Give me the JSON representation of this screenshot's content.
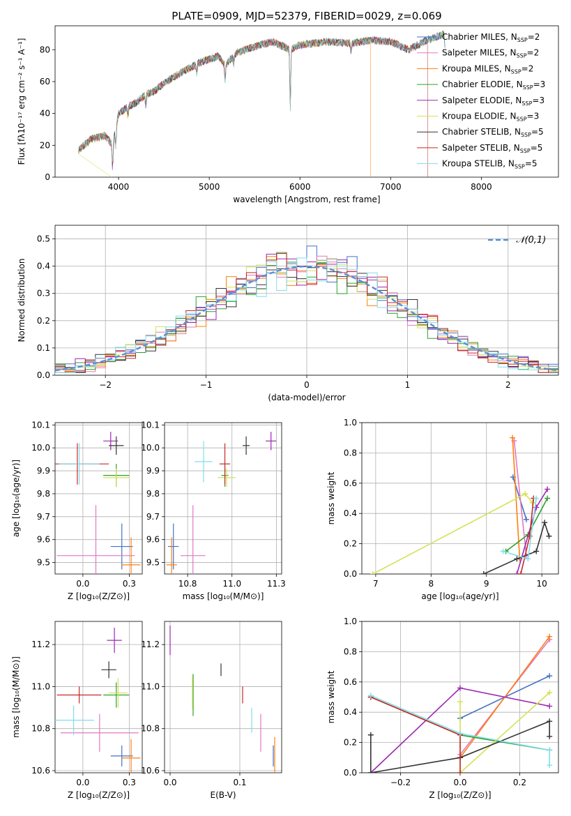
{
  "figure": {
    "title": "PLATE=0909, MJD=52379, FIBERID=0029, z=0.069"
  },
  "models": [
    {
      "name": "Chabrier MILES",
      "nssp": "2",
      "color": "#4472c4"
    },
    {
      "name": "Salpeter MILES",
      "nssp": "2",
      "color": "#e377c2"
    },
    {
      "name": "Kroupa MILES",
      "nssp": "2",
      "color": "#ff7f0e"
    },
    {
      "name": "Chabrier ELODIE",
      "nssp": "3",
      "color": "#2ca02c"
    },
    {
      "name": "Salpeter ELODIE",
      "nssp": "3",
      "color": "#9c27b0"
    },
    {
      "name": "Kroupa ELODIE",
      "nssp": "3",
      "color": "#d4e157"
    },
    {
      "name": "Chabrier STELIB",
      "nssp": "5",
      "color": "#333333"
    },
    {
      "name": "Salpeter STELIB",
      "nssp": "5",
      "color": "#c62828"
    },
    {
      "name": "Kroupa STELIB",
      "nssp": "5",
      "color": "#80deea"
    }
  ],
  "chart_data": [
    {
      "id": "spectrum",
      "type": "line",
      "xlabel": "wavelength [Angstrom, rest frame]",
      "ylabel": "Flux [fλ10⁻¹⁷ erg cm⁻² s⁻¹ A⁻¹]",
      "xlim": [
        3300,
        8850
      ],
      "ylim": [
        0,
        95
      ],
      "xticks": [
        4000,
        5000,
        6000,
        7000,
        8000
      ],
      "yticks": [
        0,
        20,
        40,
        60,
        80
      ],
      "x": [
        3560,
        3700,
        3850,
        3935,
        4000,
        4100,
        4200,
        4300,
        4400,
        4500,
        4700,
        4900,
        5100,
        5175,
        5300,
        5500,
        5700,
        5893,
        6000,
        6300,
        6563,
        6800,
        7000,
        7200,
        7400,
        7600
      ],
      "y": [
        17,
        24,
        26,
        20,
        40,
        44,
        47,
        52,
        54,
        59,
        66,
        72,
        76,
        70,
        78,
        82,
        85,
        80,
        83,
        85,
        84,
        86,
        85,
        80,
        86,
        90
      ],
      "legend_position": "upper right"
    },
    {
      "id": "residuals",
      "type": "histogram",
      "xlabel": "(data-model)/error",
      "ylabel": "Normed distribution",
      "xlim": [
        -2.5,
        2.5
      ],
      "ylim": [
        0,
        0.55
      ],
      "xticks": [
        -2,
        -1,
        0,
        1,
        2
      ],
      "yticks": [
        0.0,
        0.1,
        0.2,
        0.3,
        0.4,
        0.5
      ],
      "bin_width": 0.1,
      "reference_curve": {
        "label": "𝒩(0,1)",
        "mean": 0,
        "sigma": 1
      },
      "legend_position": "upper right"
    },
    {
      "id": "age-vs-z",
      "type": "scatter",
      "xlabel": "Z [log₁₀(Z/Z⊙)]",
      "ylabel": "age  [log₁₀(age/yr)]",
      "xlim": [
        -0.15,
        0.32
      ],
      "ylim": [
        9.45,
        10.11
      ],
      "xticks": [
        0.0,
        0.25
      ],
      "yticks": [
        9.5,
        9.6,
        9.7,
        9.8,
        9.9,
        10.0,
        10.1
      ],
      "points": [
        {
          "model": 0,
          "x": 0.21,
          "y": 9.57,
          "xerr": 0.06,
          "yerr": 0.1
        },
        {
          "model": 1,
          "x": 0.07,
          "y": 9.53,
          "xerr": 0.21,
          "yerr": 0.22
        },
        {
          "model": 2,
          "x": 0.26,
          "y": 9.49,
          "xerr": 0.05,
          "yerr": 0.12
        },
        {
          "model": 3,
          "x": 0.18,
          "y": 9.88,
          "xerr": 0.07,
          "yerr": 0.05
        },
        {
          "model": 4,
          "x": 0.15,
          "y": 10.03,
          "xerr": 0.04,
          "yerr": 0.04
        },
        {
          "model": 5,
          "x": 0.18,
          "y": 9.87,
          "xerr": 0.07,
          "yerr": 0.04
        },
        {
          "model": 6,
          "x": 0.18,
          "y": 10.01,
          "xerr": 0.04,
          "yerr": 0.04
        },
        {
          "model": 7,
          "x": -0.03,
          "y": 9.93,
          "xerr": 0.17,
          "yerr": 0.09
        },
        {
          "model": 8,
          "x": -0.02,
          "y": 9.93,
          "xerr": 0.11,
          "yerr": 0.09
        }
      ]
    },
    {
      "id": "age-vs-mass",
      "type": "scatter",
      "xlabel": "mass [log₁₀(M/M⊙)]",
      "ylabel": "",
      "xlim": [
        10.62,
        11.28
      ],
      "ylim": [
        9.45,
        10.11
      ],
      "xticks": [
        10.75,
        11.0,
        11.25
      ],
      "yticks": [
        9.5,
        9.6,
        9.7,
        9.8,
        9.9,
        10.0,
        10.1
      ],
      "points": [
        {
          "model": 0,
          "x": 10.67,
          "y": 9.57,
          "xerr": 0.03,
          "yerr": 0.1
        },
        {
          "model": 1,
          "x": 10.78,
          "y": 9.53,
          "xerr": 0.07,
          "yerr": 0.22
        },
        {
          "model": 2,
          "x": 10.66,
          "y": 9.49,
          "xerr": 0.03,
          "yerr": 0.12
        },
        {
          "model": 3,
          "x": 10.96,
          "y": 9.88,
          "xerr": 0.02,
          "yerr": 0.05
        },
        {
          "model": 4,
          "x": 11.22,
          "y": 10.03,
          "xerr": 0.03,
          "yerr": 0.04
        },
        {
          "model": 5,
          "x": 10.97,
          "y": 9.87,
          "xerr": 0.05,
          "yerr": 0.04
        },
        {
          "model": 6,
          "x": 11.08,
          "y": 10.01,
          "xerr": 0.02,
          "yerr": 0.04
        },
        {
          "model": 7,
          "x": 10.96,
          "y": 9.93,
          "xerr": 0.03,
          "yerr": 0.09
        },
        {
          "model": 8,
          "x": 10.84,
          "y": 9.94,
          "xerr": 0.05,
          "yerr": 0.09
        }
      ]
    },
    {
      "id": "weight-vs-age",
      "type": "line",
      "xlabel": "age  [log₁₀(age/yr)]",
      "ylabel": "mass weight",
      "xlim": [
        6.75,
        10.3
      ],
      "ylim": [
        0,
        1.0
      ],
      "xticks": [
        7,
        8,
        9,
        10
      ],
      "yticks": [
        0.0,
        0.2,
        0.4,
        0.6,
        0.8,
        1.0
      ],
      "series": [
        {
          "model": 0,
          "x": [
            9.48,
            9.72
          ],
          "y": [
            0.64,
            0.36
          ]
        },
        {
          "model": 1,
          "x": [
            9.5,
            9.72
          ],
          "y": [
            0.88,
            0.12
          ]
        },
        {
          "model": 2,
          "x": [
            9.47,
            9.6
          ],
          "y": [
            0.9,
            0.1
          ]
        },
        {
          "model": 3,
          "x": [
            9.35,
            9.75,
            10.1
          ],
          "y": [
            0.15,
            0.26,
            0.5
          ]
        },
        {
          "model": 4,
          "x": [
            9.55,
            9.9,
            10.1
          ],
          "y": [
            0.0,
            0.44,
            0.56
          ]
        },
        {
          "model": 5,
          "x": [
            6.95,
            9.7,
            9.83
          ],
          "y": [
            0.0,
            0.53,
            0.47
          ]
        },
        {
          "model": 6,
          "x": [
            8.95,
            9.55,
            9.9,
            10.05,
            10.13
          ],
          "y": [
            0.0,
            0.1,
            0.15,
            0.34,
            0.25
          ]
        },
        {
          "model": 7,
          "x": [
            9.62,
            9.78,
            9.85
          ],
          "y": [
            0.0,
            0.25,
            0.5
          ]
        },
        {
          "model": 8,
          "x": [
            9.3,
            9.75,
            9.9
          ],
          "y": [
            0.15,
            0.1,
            0.5
          ]
        }
      ]
    },
    {
      "id": "mass-vs-z",
      "type": "scatter",
      "xlabel": "Z [log₁₀(Z/Z⊙)]",
      "ylabel": "mass [log₁₀(M/M⊙)]",
      "xlim": [
        -0.15,
        0.32
      ],
      "ylim": [
        10.59,
        11.31
      ],
      "xticks": [
        0.0,
        0.25
      ],
      "yticks": [
        10.6,
        10.8,
        11.0,
        11.2
      ],
      "points": [
        {
          "model": 0,
          "x": 0.21,
          "y": 10.67,
          "xerr": 0.06,
          "yerr": 0.05
        },
        {
          "model": 1,
          "x": 0.09,
          "y": 10.78,
          "xerr": 0.21,
          "yerr": 0.09
        },
        {
          "model": 2,
          "x": 0.26,
          "y": 10.66,
          "xerr": 0.05,
          "yerr": 0.09
        },
        {
          "model": 3,
          "x": 0.18,
          "y": 10.96,
          "xerr": 0.07,
          "yerr": 0.06
        },
        {
          "model": 4,
          "x": 0.17,
          "y": 11.22,
          "xerr": 0.04,
          "yerr": 0.06
        },
        {
          "model": 5,
          "x": 0.19,
          "y": 10.97,
          "xerr": 0.05,
          "yerr": 0.07
        },
        {
          "model": 6,
          "x": 0.14,
          "y": 11.08,
          "xerr": 0.04,
          "yerr": 0.04
        },
        {
          "model": 7,
          "x": -0.02,
          "y": 10.96,
          "xerr": 0.12,
          "yerr": 0.04
        },
        {
          "model": 8,
          "x": -0.05,
          "y": 10.84,
          "xerr": 0.11,
          "yerr": 0.07
        }
      ]
    },
    {
      "id": "mass-vs-ebv",
      "type": "scatter",
      "xlabel": "E(B-V)",
      "ylabel": "",
      "xlim": [
        -0.008,
        0.16
      ],
      "ylim": [
        10.59,
        11.31
      ],
      "xticks": [
        0.0,
        0.1
      ],
      "yticks": [
        10.6,
        10.8,
        11.0,
        11.2
      ],
      "points": [
        {
          "model": 0,
          "x": 0.148,
          "y": 10.67,
          "xerr": 0.0,
          "yerr": 0.05
        },
        {
          "model": 1,
          "x": 0.13,
          "y": 10.78,
          "xerr": 0.0,
          "yerr": 0.09
        },
        {
          "model": 2,
          "x": 0.15,
          "y": 10.67,
          "xerr": 0.0,
          "yerr": 0.09
        },
        {
          "model": 3,
          "x": 0.033,
          "y": 10.96,
          "xerr": 0.0,
          "yerr": 0.1
        },
        {
          "model": 4,
          "x": 0.0,
          "y": 11.22,
          "xerr": 0.0,
          "yerr": 0.07
        },
        {
          "model": 5,
          "x": 0.032,
          "y": 10.97,
          "xerr": 0.0,
          "yerr": 0.08
        },
        {
          "model": 6,
          "x": 0.073,
          "y": 11.08,
          "xerr": 0.0,
          "yerr": 0.03
        },
        {
          "model": 7,
          "x": 0.104,
          "y": 10.96,
          "xerr": 0.0,
          "yerr": 0.04
        },
        {
          "model": 8,
          "x": 0.117,
          "y": 10.84,
          "xerr": 0.0,
          "yerr": 0.06
        }
      ]
    },
    {
      "id": "weight-vs-z",
      "type": "line",
      "xlabel": "Z [log₁₀(Z/Z⊙)]",
      "ylabel": "mass weight",
      "xlim": [
        -0.33,
        0.33
      ],
      "ylim": [
        0,
        1.0
      ],
      "xticks": [
        -0.2,
        0.0,
        0.2
      ],
      "yticks": [
        0.0,
        0.2,
        0.4,
        0.6,
        0.8,
        1.0
      ],
      "series": [
        {
          "model": 0,
          "x": [
            0.0,
            0.3
          ],
          "y": [
            0.36,
            0.64
          ]
        },
        {
          "model": 1,
          "x": [
            0.0,
            0.3
          ],
          "y": [
            0.12,
            0.88
          ]
        },
        {
          "model": 2,
          "x": [
            0.0,
            0.3
          ],
          "y": [
            0.1,
            0.9
          ]
        },
        {
          "model": 3,
          "x": [
            -0.3,
            0.0,
            0.3
          ],
          "y": [
            0.5,
            0.25,
            0.15
          ]
        },
        {
          "model": 4,
          "x": [
            -0.3,
            0.0,
            0.3
          ],
          "y": [
            0.0,
            0.56,
            0.44
          ]
        },
        {
          "model": 5,
          "x": [
            0.0,
            0.0,
            0.3
          ],
          "y": [
            0.47,
            0.0,
            0.53
          ]
        },
        {
          "model": 6,
          "x": [
            -0.3,
            -0.3,
            0.0,
            0.3,
            0.3
          ],
          "y": [
            0.25,
            0.0,
            0.1,
            0.34,
            0.24
          ]
        },
        {
          "model": 7,
          "x": [
            -0.3,
            0.0,
            0.0
          ],
          "y": [
            0.5,
            0.25,
            0.0
          ]
        },
        {
          "model": 8,
          "x": [
            -0.3,
            0.0,
            0.3,
            0.3
          ],
          "y": [
            0.51,
            0.26,
            0.15,
            0.05
          ]
        }
      ]
    }
  ]
}
